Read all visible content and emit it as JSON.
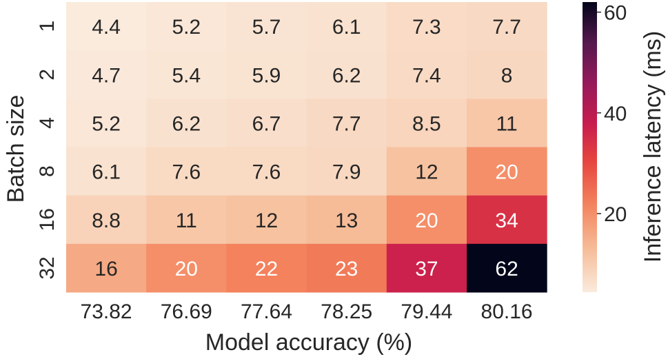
{
  "chart_data": {
    "type": "heatmap",
    "xlabel": "Model accuracy (%)",
    "ylabel": "Batch size",
    "x_categories": [
      "73.82",
      "76.69",
      "77.64",
      "78.25",
      "79.44",
      "80.16"
    ],
    "y_categories": [
      "1",
      "2",
      "4",
      "8",
      "16",
      "32"
    ],
    "values": [
      [
        4.4,
        5.2,
        5.7,
        6.1,
        7.3,
        7.7
      ],
      [
        4.7,
        5.4,
        5.9,
        6.2,
        7.4,
        8
      ],
      [
        5.2,
        6.2,
        6.7,
        7.7,
        8.5,
        11
      ],
      [
        6.1,
        7.6,
        7.6,
        7.9,
        12,
        20
      ],
      [
        8.8,
        11,
        12,
        13,
        20,
        34
      ],
      [
        16,
        20,
        22,
        23,
        37,
        62
      ]
    ],
    "colorbar": {
      "label": "Inference latency (ms)",
      "range": [
        4.4,
        62
      ],
      "ticks": [
        20,
        40,
        60
      ],
      "colormap": "rocket_r"
    },
    "text_colors": {
      "dark": "#262626",
      "light": "#ffffff"
    }
  }
}
